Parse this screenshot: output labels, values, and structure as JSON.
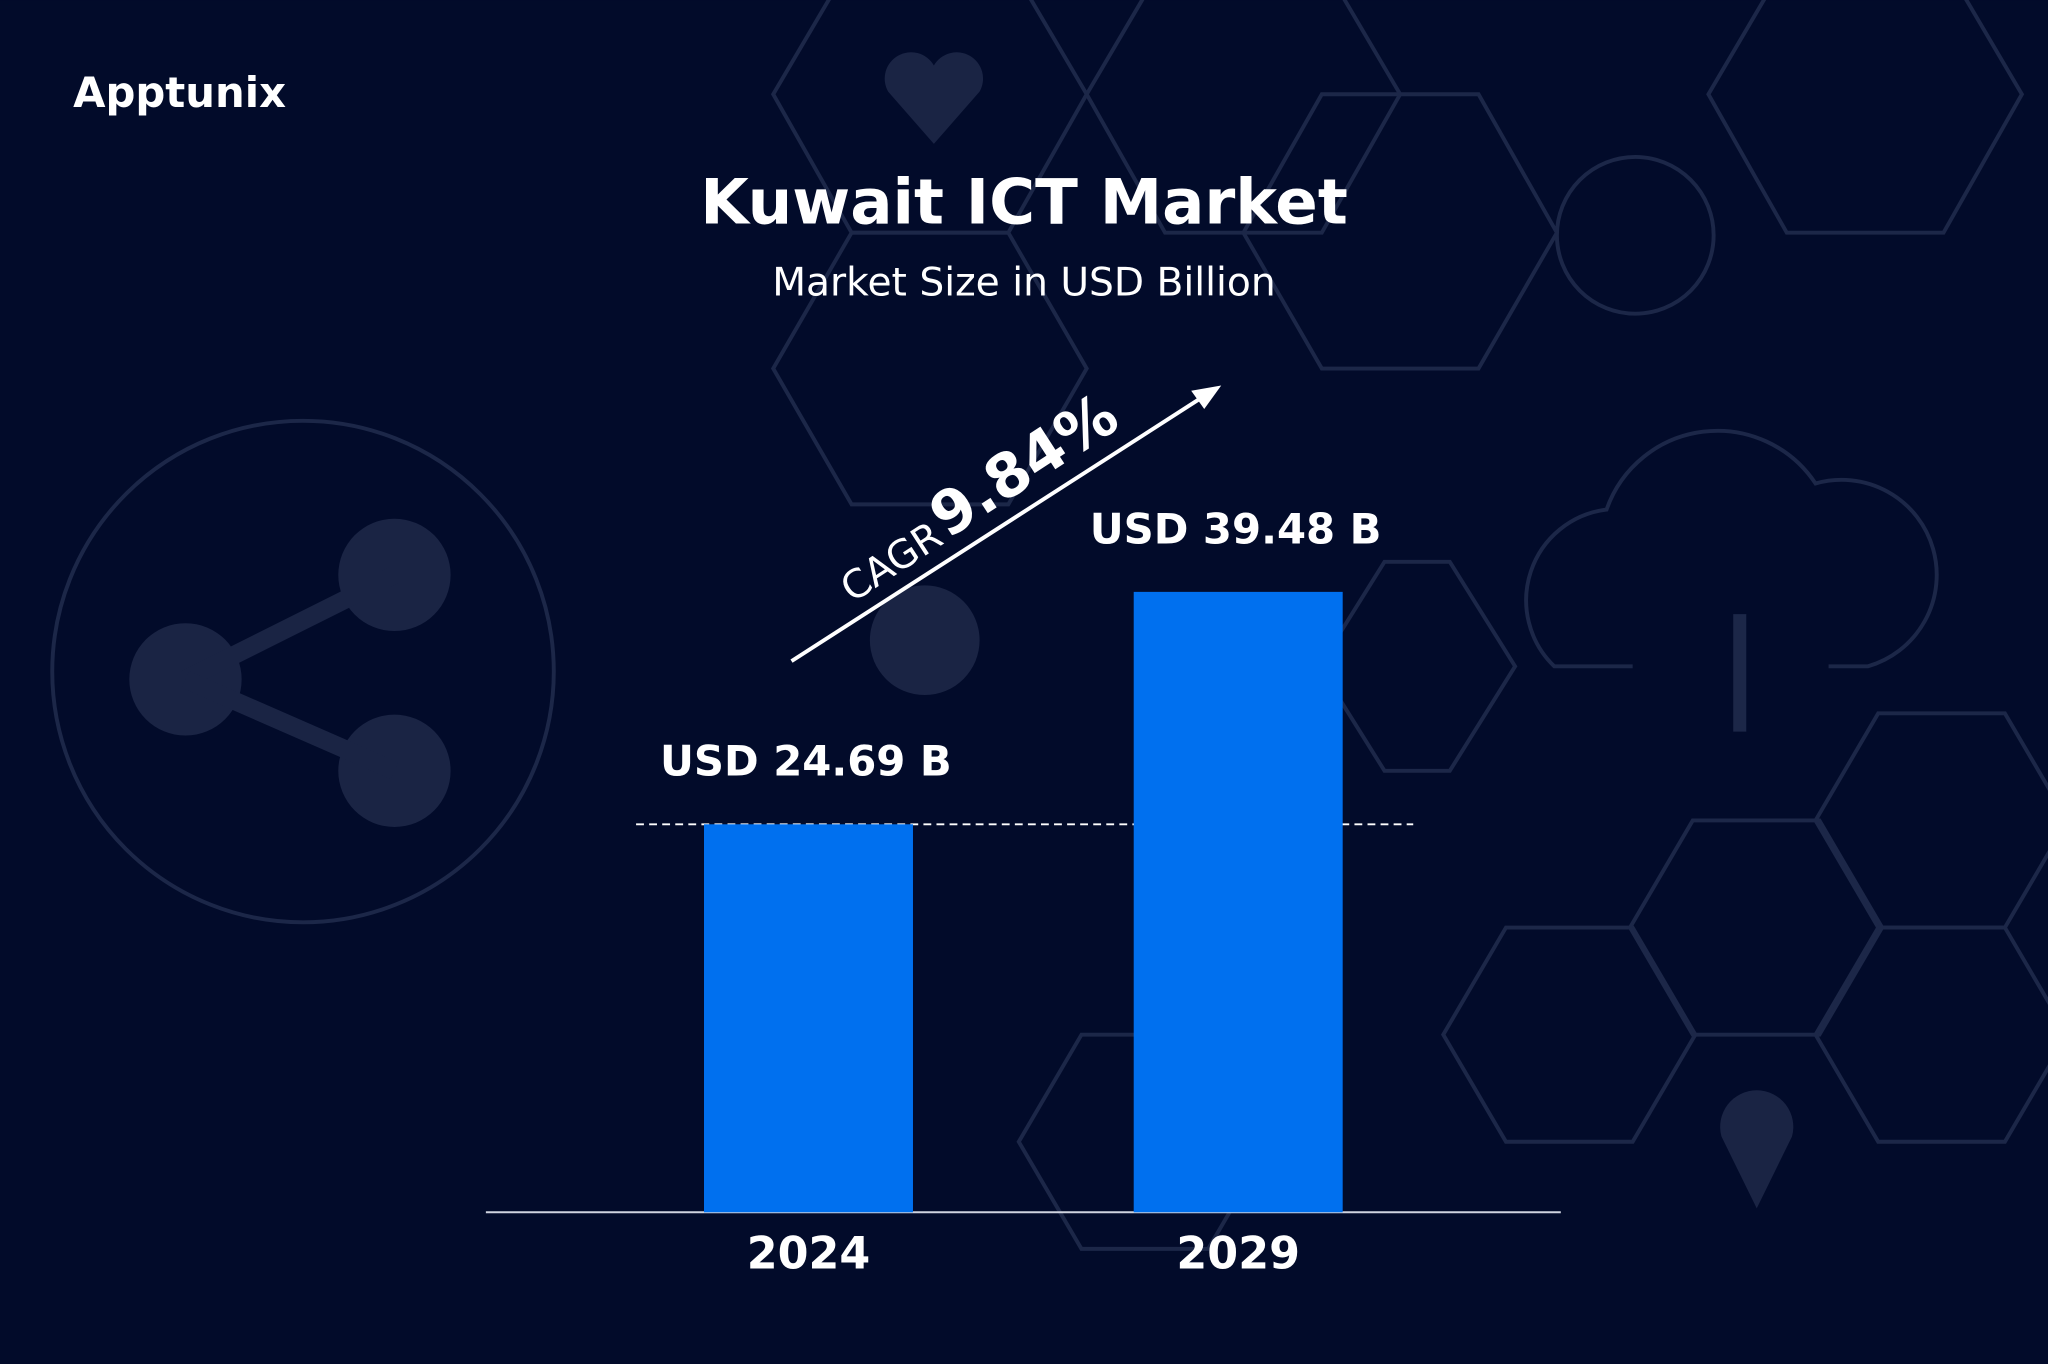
{
  "brand": "Apptunix",
  "chart_data": {
    "type": "bar",
    "title": "Kuwait ICT Market",
    "subtitle": "Market Size in USD Billion",
    "categories": [
      "2024",
      "2029"
    ],
    "values": [
      24.69,
      39.48
    ],
    "value_labels": [
      "USD 24.69 B",
      "USD 39.48 B"
    ],
    "color": "#0070ef",
    "annotations": [
      "CAGR",
      "9.84%"
    ]
  }
}
